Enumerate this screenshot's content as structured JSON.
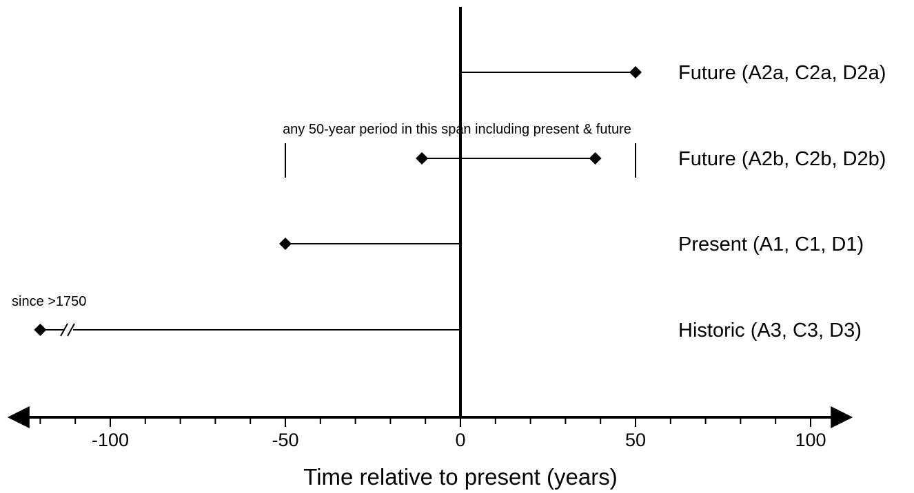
{
  "chart_data": {
    "type": "timeline",
    "xlabel": "Time relative to present (years)",
    "xlim": [
      -128,
      112
    ],
    "xticks_major": [
      -100,
      -50,
      0,
      50,
      100
    ],
    "xticks_major_labels": [
      "-100",
      "-50",
      "0",
      "50",
      "100"
    ],
    "xticks_minor_step": 10,
    "rows": [
      {
        "label": "Future (A2a, C2a, D2a)",
        "start": 0,
        "end": 50,
        "marker_start": false,
        "marker_end": true,
        "broken": false
      },
      {
        "label": "Future (A2b, C2b, D2b)",
        "start": -11,
        "end": 38.5,
        "marker_start": true,
        "marker_end": true,
        "broken": false
      },
      {
        "label": "Present (A1, C1, D1)",
        "start": -50,
        "end": 0,
        "marker_start": true,
        "marker_end": false,
        "broken": false
      },
      {
        "label": "Historic (A3, C3, D3)",
        "start": -120,
        "end": 0,
        "marker_start": true,
        "marker_end": false,
        "broken": true
      }
    ],
    "span_bounds": [
      -50,
      50
    ],
    "annotations": {
      "span": "any 50-year period in this span including present & future",
      "historic": "since >1750"
    }
  }
}
